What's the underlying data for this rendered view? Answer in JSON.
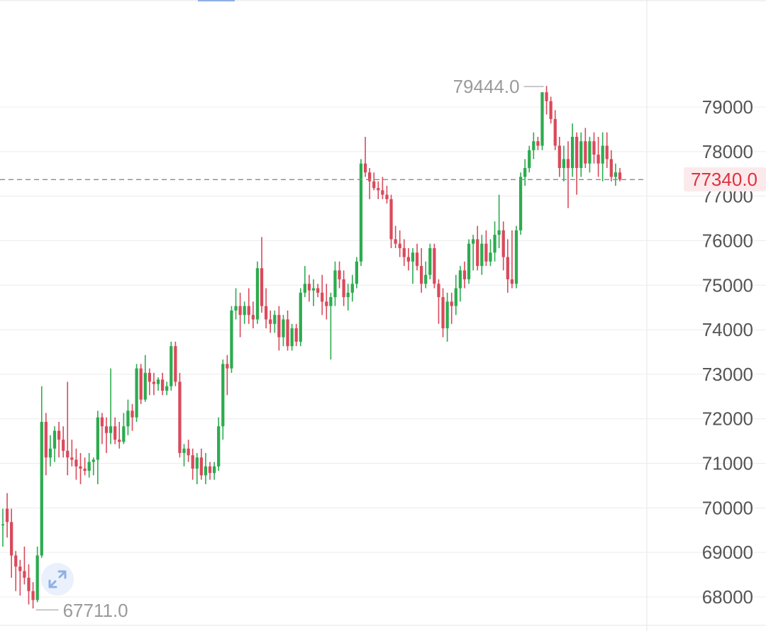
{
  "chart_data": {
    "type": "candlestick",
    "y_axis": {
      "labels": [
        "79000",
        "78000",
        "77000",
        "76000",
        "75000",
        "74000",
        "73000",
        "72000",
        "71000",
        "70000",
        "69000",
        "68000"
      ],
      "values": [
        79000,
        78000,
        77000,
        76000,
        75000,
        74000,
        73000,
        72000,
        71000,
        70000,
        69000,
        68000
      ],
      "side": "right"
    },
    "grid": true,
    "current_price": "77340.0",
    "current_price_value": 77340,
    "high_label": "79444.0",
    "high_value": 79444,
    "low_label": "67711.0",
    "low_value": 67711,
    "colors": {
      "up": "#2dab4f",
      "down": "#d94a5b",
      "grid": "#ececec",
      "axis_text": "#555555",
      "annotation": "#9a9a9a",
      "current": "#e0303f"
    },
    "candles": [
      [
        69600,
        69950,
        69100,
        69600
      ],
      [
        69950,
        70300,
        69300,
        69650
      ],
      [
        69650,
        69950,
        68400,
        68900
      ],
      [
        68900,
        69000,
        68100,
        68650
      ],
      [
        68650,
        68800,
        68000,
        68550
      ],
      [
        68550,
        69100,
        68250,
        68400
      ],
      [
        68400,
        68700,
        67800,
        68100
      ],
      [
        68100,
        68300,
        67711,
        67900
      ],
      [
        67900,
        69100,
        67850,
        68900
      ],
      [
        68900,
        72700,
        68850,
        71900
      ],
      [
        71900,
        72100,
        70700,
        71100
      ],
      [
        71100,
        71600,
        70900,
        71300
      ],
      [
        71300,
        71800,
        71000,
        71700
      ],
      [
        71700,
        71900,
        71100,
        71500
      ],
      [
        71500,
        71800,
        71100,
        71250
      ],
      [
        71250,
        72800,
        70700,
        71100
      ],
      [
        71100,
        71500,
        70900,
        71050
      ],
      [
        71050,
        71300,
        70600,
        70900
      ],
      [
        70900,
        71200,
        70500,
        70850
      ],
      [
        70850,
        71100,
        70700,
        70800
      ],
      [
        70800,
        71200,
        70650,
        71000
      ],
      [
        71000,
        71100,
        70700,
        71050
      ],
      [
        71050,
        72150,
        70500,
        72000
      ],
      [
        72000,
        72100,
        71400,
        71800
      ],
      [
        71800,
        72000,
        71200,
        71650
      ],
      [
        71650,
        73100,
        71400,
        71800
      ],
      [
        71800,
        72000,
        71400,
        71500
      ],
      [
        71500,
        71900,
        71300,
        71450
      ],
      [
        71450,
        72100,
        71400,
        71800
      ],
      [
        71800,
        72400,
        71600,
        72150
      ],
      [
        72150,
        72300,
        71700,
        72000
      ],
      [
        72000,
        73200,
        71900,
        73100
      ],
      [
        73100,
        73200,
        72300,
        72400
      ],
      [
        72400,
        73400,
        72350,
        73000
      ],
      [
        73000,
        73100,
        72500,
        72800
      ],
      [
        72800,
        73000,
        72500,
        72750
      ],
      [
        72750,
        72900,
        72600,
        72850
      ],
      [
        72850,
        73000,
        72500,
        72600
      ],
      [
        72600,
        72800,
        72500,
        72700
      ],
      [
        72700,
        73700,
        72600,
        73600
      ],
      [
        73600,
        73700,
        72700,
        72800
      ],
      [
        72800,
        73000,
        71100,
        71200
      ],
      [
        71200,
        71400,
        70900,
        71300
      ],
      [
        71300,
        71500,
        71000,
        71150
      ],
      [
        71150,
        71300,
        70600,
        70850
      ],
      [
        70850,
        71200,
        70500,
        71100
      ],
      [
        71100,
        71300,
        70600,
        70700
      ],
      [
        70700,
        71200,
        70500,
        70900
      ],
      [
        70900,
        71000,
        70600,
        70750
      ],
      [
        70750,
        71000,
        70600,
        70900
      ],
      [
        70900,
        72000,
        70800,
        71800
      ],
      [
        71800,
        73300,
        71500,
        73200
      ],
      [
        73200,
        73400,
        72500,
        73100
      ],
      [
        73100,
        74500,
        73000,
        74400
      ],
      [
        74400,
        74900,
        74200,
        74500
      ],
      [
        74500,
        74800,
        73800,
        74300
      ],
      [
        74300,
        74600,
        74100,
        74500
      ],
      [
        74500,
        74900,
        74100,
        74300
      ],
      [
        74300,
        74600,
        74000,
        74200
      ],
      [
        74200,
        75500,
        74100,
        75350
      ],
      [
        75350,
        76050,
        74350,
        74500
      ],
      [
        74500,
        74900,
        74000,
        74200
      ],
      [
        74200,
        74400,
        73900,
        74100
      ],
      [
        74100,
        74400,
        73900,
        74300
      ],
      [
        74300,
        74500,
        73500,
        73800
      ],
      [
        73800,
        74300,
        73600,
        74200
      ],
      [
        74200,
        74400,
        73500,
        73600
      ],
      [
        73600,
        74100,
        73500,
        74000
      ],
      [
        74000,
        74100,
        73600,
        73700
      ],
      [
        73700,
        74900,
        73600,
        74800
      ],
      [
        74800,
        75400,
        74700,
        75000
      ],
      [
        75000,
        75200,
        74600,
        74850
      ],
      [
        74850,
        75100,
        74500,
        74900
      ],
      [
        74900,
        75000,
        74700,
        74800
      ],
      [
        74800,
        75200,
        74300,
        74600
      ],
      [
        74600,
        75000,
        74200,
        74500
      ],
      [
        74500,
        74800,
        73300,
        74700
      ],
      [
        74700,
        75500,
        74500,
        75300
      ],
      [
        75300,
        75500,
        74900,
        75100
      ],
      [
        75100,
        75300,
        74500,
        74700
      ],
      [
        74700,
        75000,
        74400,
        74800
      ],
      [
        74800,
        75200,
        74600,
        75000
      ],
      [
        75000,
        75600,
        74900,
        75500
      ],
      [
        75500,
        77800,
        75400,
        77700
      ],
      [
        77700,
        78300,
        77400,
        77500
      ],
      [
        77500,
        77600,
        76900,
        77300
      ],
      [
        77300,
        77500,
        77100,
        77150
      ],
      [
        77150,
        77300,
        76900,
        77100
      ],
      [
        77100,
        77400,
        76900,
        77000
      ],
      [
        77000,
        77200,
        76800,
        76900
      ],
      [
        76900,
        77000,
        75800,
        76000
      ],
      [
        76000,
        76300,
        75800,
        75900
      ],
      [
        75900,
        76200,
        75600,
        75800
      ],
      [
        75800,
        76000,
        75400,
        75600
      ],
      [
        75600,
        75800,
        75300,
        75500
      ],
      [
        75500,
        75800,
        75000,
        75700
      ],
      [
        75700,
        75900,
        75300,
        75400
      ],
      [
        75400,
        75800,
        74800,
        75000
      ],
      [
        75000,
        75500,
        74900,
        75200
      ],
      [
        75200,
        75900,
        75100,
        75800
      ],
      [
        75800,
        75900,
        74900,
        75000
      ],
      [
        75000,
        75100,
        74100,
        74700
      ],
      [
        74700,
        74900,
        73800,
        74000
      ],
      [
        74000,
        74800,
        73700,
        74600
      ],
      [
        74600,
        74800,
        74100,
        74500
      ],
      [
        74500,
        75200,
        74300,
        74900
      ],
      [
        74900,
        75400,
        74600,
        75300
      ],
      [
        75300,
        75500,
        74900,
        75100
      ],
      [
        75100,
        76000,
        75000,
        75900
      ],
      [
        75900,
        76100,
        75300,
        76000
      ],
      [
        76000,
        76300,
        75300,
        75400
      ],
      [
        75400,
        76100,
        75200,
        75900
      ],
      [
        75900,
        76200,
        75400,
        75500
      ],
      [
        75500,
        76000,
        75400,
        75700
      ],
      [
        75700,
        76400,
        75500,
        76100
      ],
      [
        76100,
        77000,
        75800,
        76200
      ],
      [
        76200,
        76400,
        75300,
        75600
      ],
      [
        75600,
        76000,
        74800,
        75100
      ],
      [
        75100,
        76200,
        74900,
        75000
      ],
      [
        75000,
        76300,
        74900,
        76200
      ],
      [
        76200,
        77500,
        76100,
        77400
      ],
      [
        77400,
        77800,
        77200,
        77600
      ],
      [
        77600,
        78100,
        77500,
        78000
      ],
      [
        78000,
        78400,
        77800,
        78200
      ],
      [
        78200,
        78300,
        78000,
        78100
      ],
      [
        78100,
        79300,
        78000,
        79300
      ],
      [
        79300,
        79444,
        78800,
        79100
      ],
      [
        79100,
        79200,
        78600,
        78700
      ],
      [
        78700,
        78900,
        78000,
        78100
      ],
      [
        78100,
        78300,
        77400,
        77600
      ],
      [
        77600,
        78100,
        77300,
        77800
      ],
      [
        77800,
        78200,
        76700,
        77600
      ],
      [
        77600,
        78600,
        77400,
        78300
      ],
      [
        78300,
        78400,
        77000,
        77600
      ],
      [
        77600,
        78400,
        77400,
        78200
      ],
      [
        78200,
        78500,
        77600,
        77700
      ],
      [
        77700,
        78300,
        77500,
        78200
      ],
      [
        78200,
        78400,
        77700,
        77900
      ],
      [
        77900,
        78300,
        77400,
        77700
      ],
      [
        77700,
        78400,
        77300,
        78100
      ],
      [
        78100,
        78400,
        77600,
        77800
      ],
      [
        77800,
        78000,
        77300,
        77400
      ],
      [
        77400,
        77700,
        77200,
        77500
      ],
      [
        77500,
        77600,
        77300,
        77340
      ]
    ]
  },
  "ui": {
    "expand_icon": "expand-diagonal-icon"
  }
}
